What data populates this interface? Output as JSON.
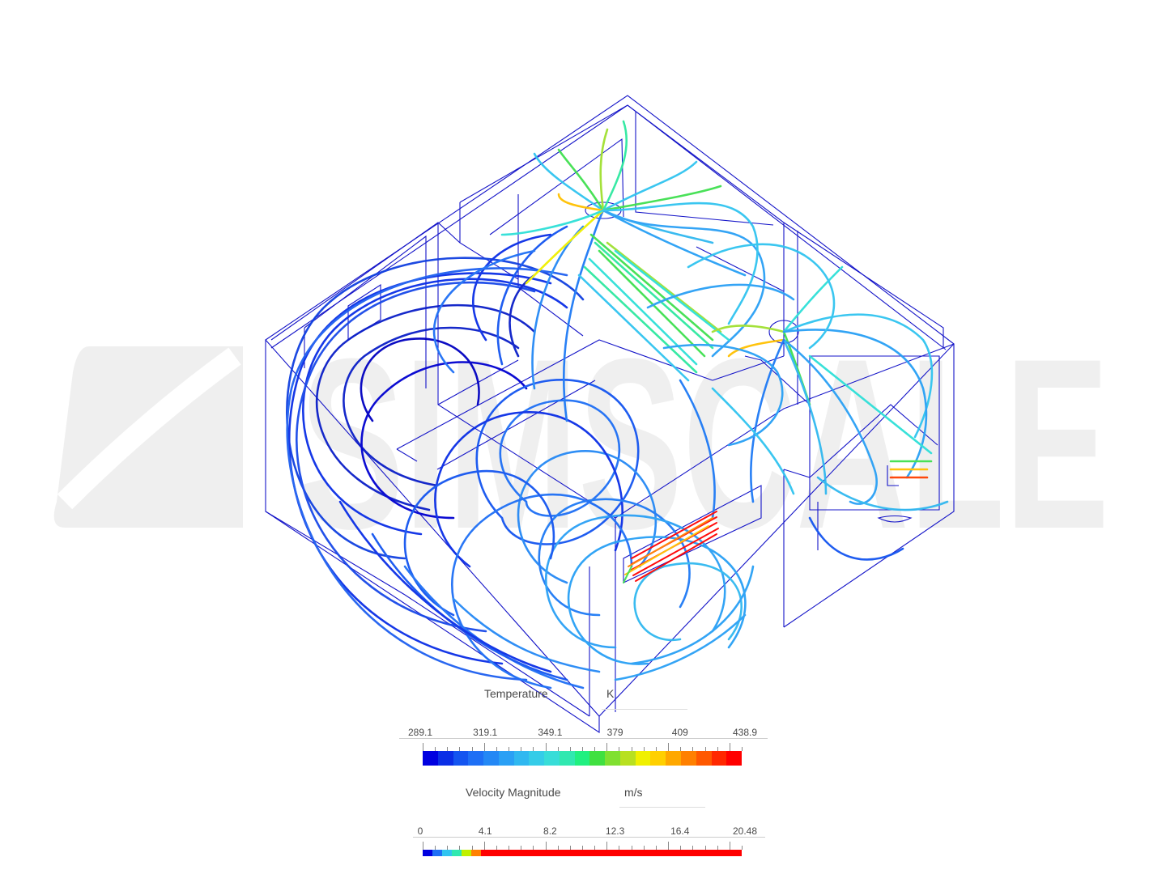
{
  "watermark": {
    "text": "SIMSCALE"
  },
  "scene": {
    "wire_color": "#1414c8",
    "palette": [
      "#0000d0",
      "#0a2ee6",
      "#1455f0",
      "#1e7af5",
      "#28a0f5",
      "#30c4f0",
      "#2ee0d8",
      "#2ee8a0",
      "#40e050",
      "#a0e030",
      "#f0f000",
      "#ffc000",
      "#ff8000",
      "#ff4000",
      "#ff0000"
    ]
  },
  "legends": [
    {
      "title": "Temperature",
      "unit": "K",
      "tick_labels": [
        "289.1",
        "319.1",
        "349.1",
        "379",
        "409",
        "438.9"
      ],
      "colors": [
        "#0000e0",
        "#0a2ee6",
        "#1455f0",
        "#1e6ff5",
        "#2488f5",
        "#2aa0f5",
        "#30b8f0",
        "#35cce8",
        "#38ddd8",
        "#30e8b0",
        "#20f080",
        "#40e040",
        "#80e030",
        "#b8e020",
        "#f0f000",
        "#ffd000",
        "#ffa800",
        "#ff8000",
        "#ff5800",
        "#ff2800",
        "#ff0000"
      ]
    },
    {
      "title": "Velocity Magnitude",
      "unit": "m/s",
      "tick_labels": [
        "0",
        "4.1",
        "8.2",
        "12.3",
        "16.4",
        "20.48"
      ],
      "colors": [
        "#0000e0",
        "#1e6ff5",
        "#30c4f0",
        "#30e8b0",
        "#c0f000",
        "#ff8000",
        "#ff0000",
        "#ff0000",
        "#ff0000",
        "#ff0000",
        "#ff0000",
        "#ff0000",
        "#ff0000",
        "#ff0000",
        "#ff0000",
        "#ff0000",
        "#ff0000",
        "#ff0000",
        "#ff0000",
        "#ff0000",
        "#ff0000",
        "#ff0000",
        "#ff0000",
        "#ff0000",
        "#ff0000",
        "#ff0000",
        "#ff0000",
        "#ff0000",
        "#ff0000",
        "#ff0000",
        "#ff0000",
        "#ff0000",
        "#ff0000"
      ]
    }
  ]
}
